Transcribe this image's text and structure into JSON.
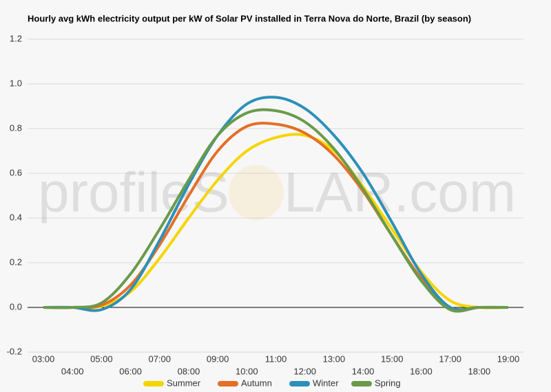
{
  "chart_data": {
    "type": "line",
    "title": "Hourly avg kWh electricity output per kW of Solar PV installed in Terra Nova do Norte, Brazil (by season)",
    "watermark": [
      "profileS",
      "LAR.com"
    ],
    "categories": [
      "03:00",
      "04:00",
      "05:00",
      "06:00",
      "07:00",
      "08:00",
      "09:00",
      "10:00",
      "11:00",
      "12:00",
      "13:00",
      "14:00",
      "15:00",
      "16:00",
      "17:00",
      "18:00",
      "19:00"
    ],
    "series": [
      {
        "name": "Summer",
        "color": "#f5d500",
        "values": [
          0,
          0,
          0.005,
          0.07,
          0.22,
          0.4,
          0.57,
          0.7,
          0.76,
          0.77,
          0.7,
          0.54,
          0.35,
          0.16,
          0.03,
          0,
          0
        ]
      },
      {
        "name": "Autumn",
        "color": "#e46f26",
        "values": [
          0,
          0,
          0.01,
          0.1,
          0.28,
          0.5,
          0.7,
          0.81,
          0.82,
          0.78,
          0.68,
          0.52,
          0.32,
          0.13,
          0,
          0,
          0
        ]
      },
      {
        "name": "Winter",
        "color": "#2c90b9",
        "values": [
          0,
          0,
          -0.01,
          0.08,
          0.3,
          0.55,
          0.77,
          0.91,
          0.94,
          0.89,
          0.77,
          0.6,
          0.38,
          0.15,
          0,
          0,
          0
        ]
      },
      {
        "name": "Spring",
        "color": "#6a9a4a",
        "values": [
          0,
          0,
          0.02,
          0.15,
          0.35,
          0.57,
          0.77,
          0.87,
          0.88,
          0.83,
          0.71,
          0.53,
          0.32,
          0.12,
          -0.01,
          0,
          0
        ]
      }
    ],
    "ylim": [
      -0.2,
      1.2
    ],
    "yticks": [
      -0.2,
      {
        "value": 0,
        "label": "0.0"
      },
      0.2,
      0.4,
      0.6,
      0.8,
      {
        "value": 1,
        "label": "1.0"
      },
      1.2
    ],
    "grid": true
  }
}
